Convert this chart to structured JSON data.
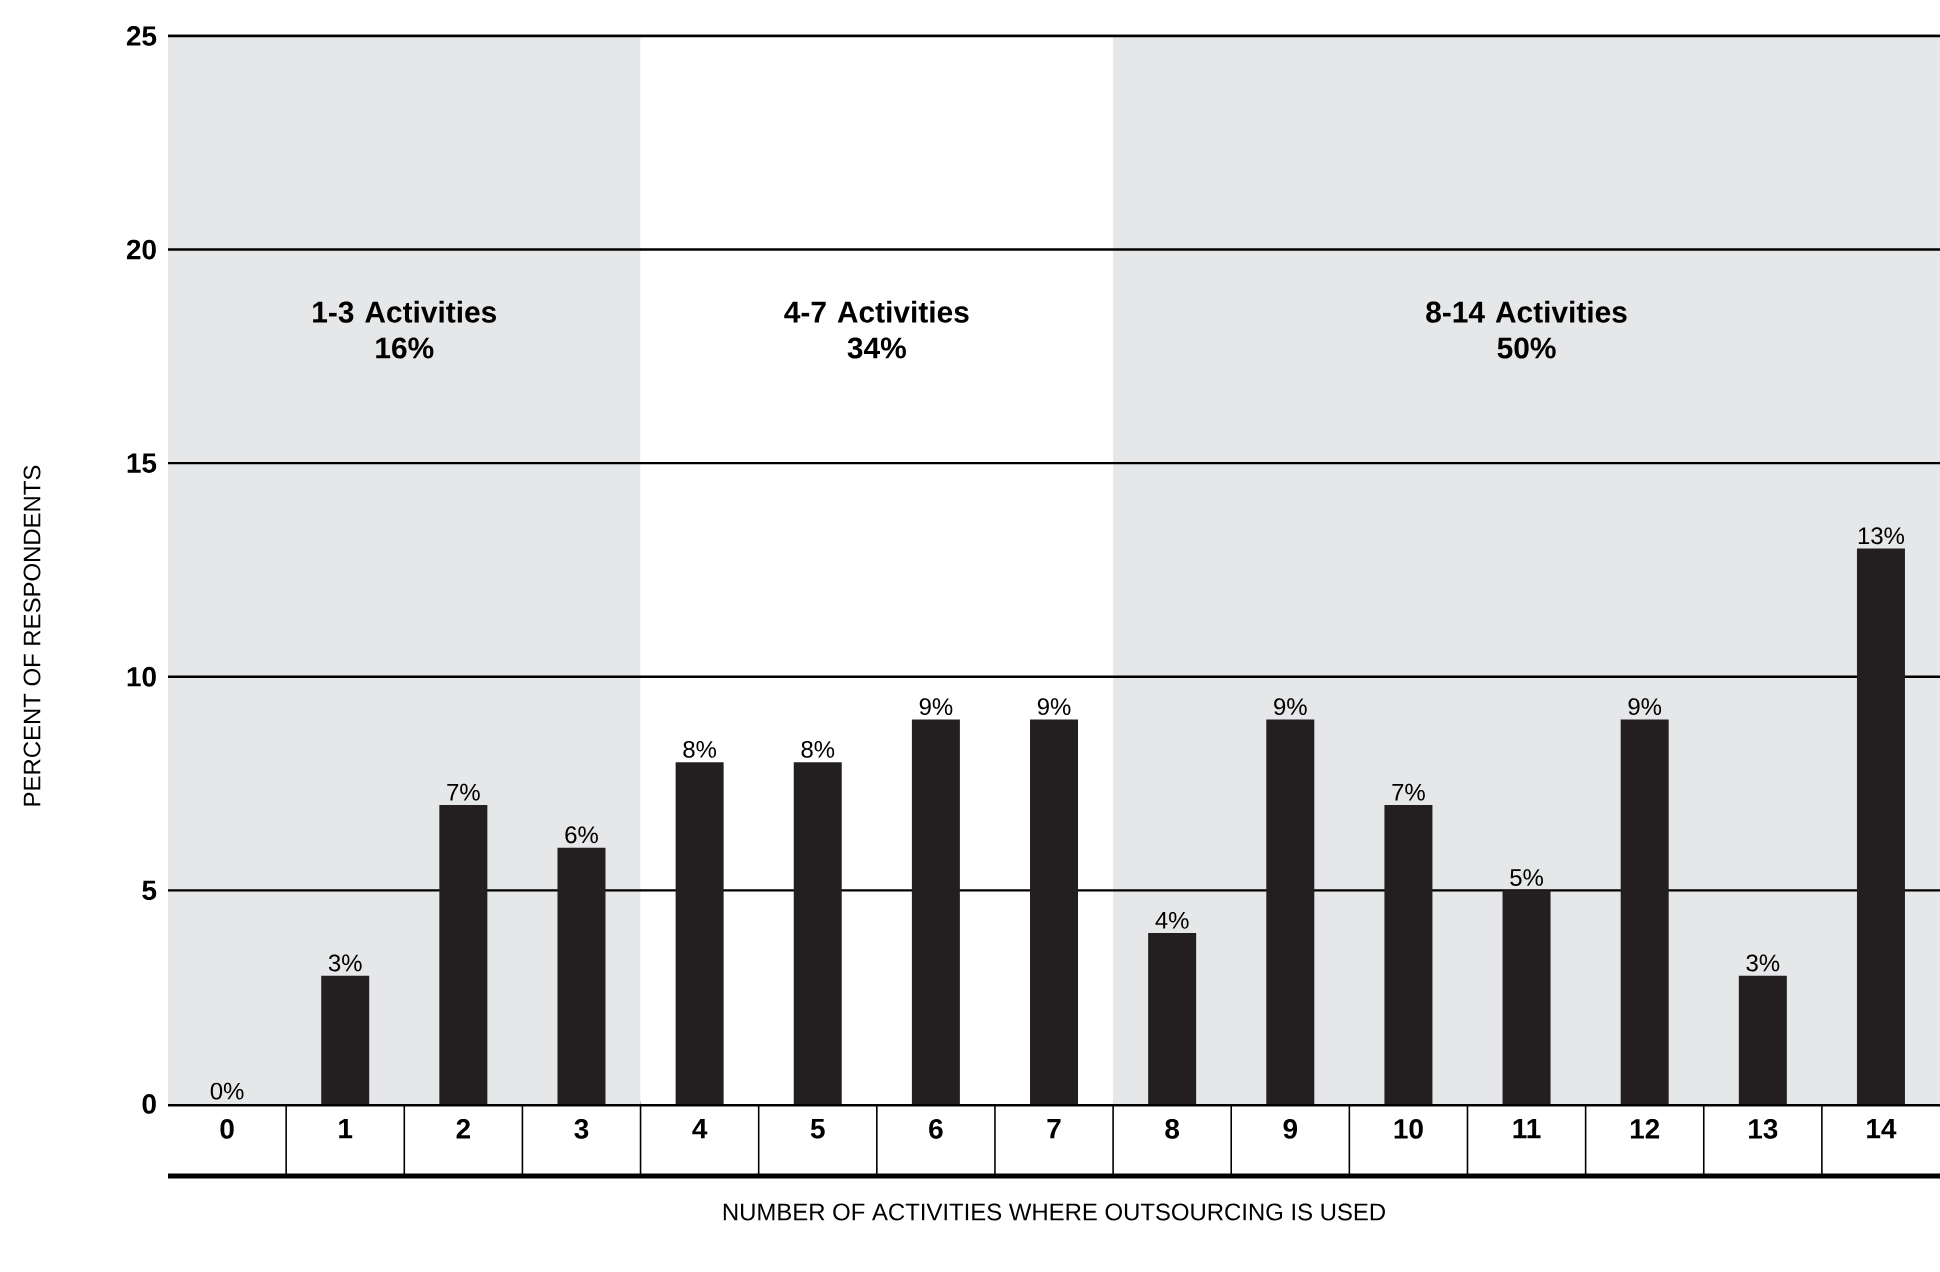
{
  "chart_data": {
    "type": "bar",
    "xlabel": "NUMBER OF ACTIVITIES WHERE OUTSOURCING IS USED",
    "ylabel": "PERCENT OF RESPONDENTS",
    "x": [
      0,
      1,
      2,
      3,
      4,
      5,
      6,
      7,
      8,
      9,
      10,
      11,
      12,
      13,
      14
    ],
    "values": [
      0,
      3,
      7,
      6,
      8,
      8,
      9,
      9,
      4,
      9,
      7,
      5,
      9,
      3,
      13
    ],
    "value_labels": [
      "0%",
      "3%",
      "7%",
      "6%",
      "8%",
      "8%",
      "9%",
      "9%",
      "4%",
      "9%",
      "7%",
      "5%",
      "9%",
      "3%",
      "13%"
    ],
    "color": "#231f20",
    "xlim": [
      -0.5,
      14.5
    ],
    "xticks": [
      0,
      1,
      2,
      3,
      4,
      5,
      6,
      7,
      8,
      9,
      10,
      11,
      12,
      13,
      14
    ],
    "ylim": [
      0,
      25
    ],
    "yticks": [
      0,
      5,
      10,
      15,
      20,
      25
    ],
    "grid": "y",
    "bands": [
      {
        "axis": "x",
        "from": -0.5,
        "to": 3.5,
        "label": "1-3 Activities 16%",
        "color": "#e6e7e8"
      },
      {
        "axis": "x",
        "from": 3.5,
        "to": 7.5,
        "label": "4-7 Activities 34%",
        "color": "#ffffff"
      },
      {
        "axis": "x",
        "from": 7.5,
        "to": 14.5,
        "label": "8-14 Activities 50%",
        "color": "#e6e7e8"
      }
    ]
  }
}
